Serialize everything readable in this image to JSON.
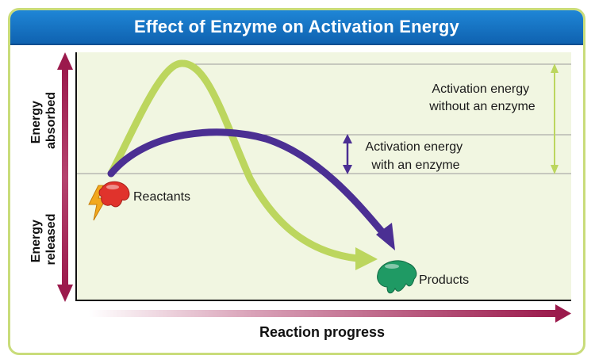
{
  "title": "Effect of Enzyme on Activation Energy",
  "axes": {
    "y_upper_label": [
      "Energy",
      "absorbed"
    ],
    "y_lower_label": [
      "Energy",
      "released"
    ],
    "x_label": "Reaction progress"
  },
  "labels": {
    "reactants": "Reactants",
    "products": "Products",
    "without_enzyme": [
      "Activation energy",
      "without an enzyme"
    ],
    "with_enzyme": [
      "Activation energy",
      "with an enzyme"
    ]
  },
  "colors": {
    "title_bar": "#1474c8",
    "plot_background": "#f1f6e1",
    "frame_border": "#c9dc7a",
    "no_enzyme_curve": "#bcd65e",
    "enzyme_curve": "#4b2f93",
    "energy_axis": "#9b1a4c",
    "reactants_molecule": "#e0332c",
    "reactants_bolt": "#f2a81d",
    "products_molecule": "#1f9a64"
  }
}
